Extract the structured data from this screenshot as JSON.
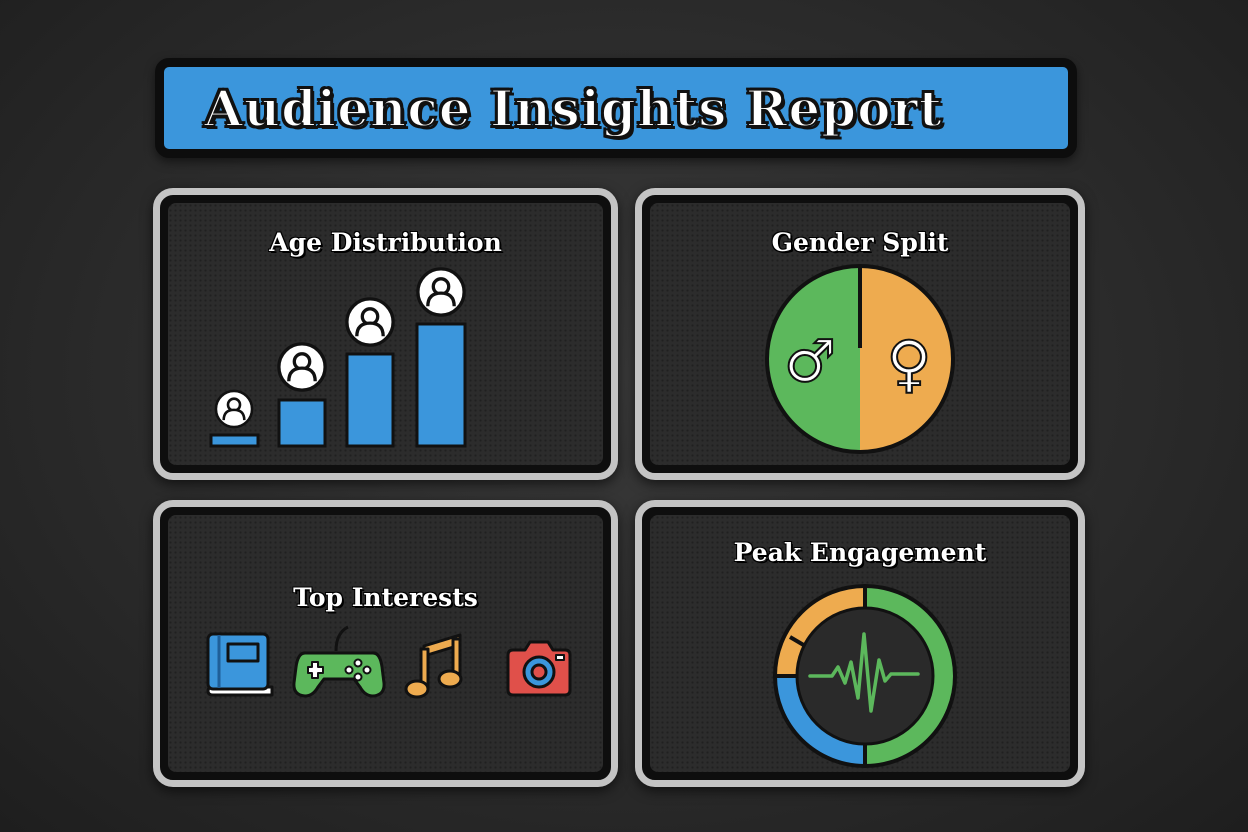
{
  "title": "Audience Insights Report",
  "panels": {
    "age": {
      "title": "Age Distribution"
    },
    "gender": {
      "title": "Gender Split",
      "male_symbol": "♂",
      "female_symbol": "♀"
    },
    "interests": {
      "title": "Top Interests"
    },
    "peak": {
      "title": "Peak Engagement"
    }
  },
  "colors": {
    "accent_blue": "#3b96dc",
    "green": "#5cb85c",
    "orange": "#eeab4f",
    "red": "#e0504a",
    "panel_border": "#c4c4c4"
  },
  "icons": [
    "person-icon",
    "book-icon",
    "gamepad-icon",
    "music-note-icon",
    "camera-icon",
    "pulse-icon"
  ]
}
